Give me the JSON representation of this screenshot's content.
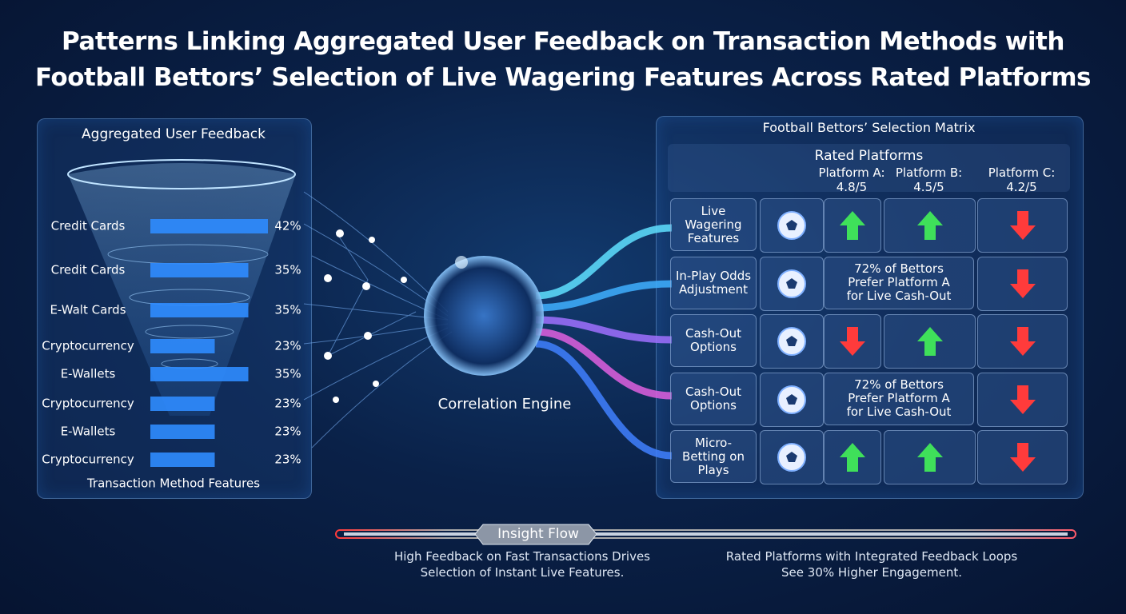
{
  "title": "Patterns Linking Aggregated User Feedback on Transaction Methods with Football Bettors’ Selection of Live Wagering Features Across Rated Platforms",
  "chart_data": {
    "type": "bar",
    "title": "Aggregated User Feedback",
    "x_label": "Transaction Method Features",
    "categories": [
      "Credit Cards",
      "Credit Cards",
      "E-Walt Cards",
      "Cryptocurrency",
      "E-Wallets",
      "Cryptocurrency",
      "E-Wallets",
      "Cryptocurrency"
    ],
    "values": [
      42,
      35,
      35,
      23,
      35,
      23,
      23,
      23
    ],
    "value_labels": [
      "42%",
      "35%",
      "35%",
      "23%",
      "35%",
      "23%",
      "23%",
      "23%"
    ],
    "color": "#2f8cff"
  },
  "engine": {
    "label": "Correlation Engine"
  },
  "matrix": {
    "title": "Football Bettors’ Selection Matrix",
    "subtitle": "Rated Platforms",
    "platforms": [
      {
        "name": "Platform A:",
        "rating": "4.8/5"
      },
      {
        "name": "Platform B:",
        "rating": "4.5/5"
      },
      {
        "name": "Platform C:",
        "rating": "4.2/5"
      }
    ],
    "rows": [
      {
        "label": "Live Wagering Features",
        "cells": [
          "up",
          "up",
          "down"
        ]
      },
      {
        "label": "In-Play Odds Adjustment",
        "note": "72% of Bettors Prefer Platform A for Live Cash-Out",
        "cells": [
          "down"
        ]
      },
      {
        "label": "Cash-Out Options",
        "cells": [
          "down",
          "up",
          "down"
        ]
      },
      {
        "label": "Cash-Out Options",
        "note": "72% of Bettors Prefer Platform A for Live Cash-Out",
        "cells": [
          "down"
        ]
      },
      {
        "label": "Micro-Betting on Plays",
        "cells": [
          "up",
          "up",
          "down"
        ]
      }
    ]
  },
  "insight": {
    "label": "Insight Flow",
    "left": "High Feedback on Fast Transactions Drives Selection of Instant Live Features.",
    "right": "Rated Platforms with Integrated Feedback Loops See 30% Higher Engagement."
  }
}
